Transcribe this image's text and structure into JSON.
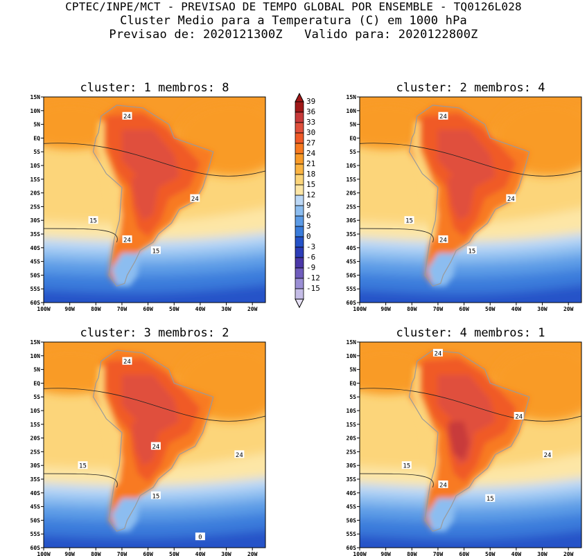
{
  "header": {
    "line1": "CPTEC/INPE/MCT - PREVISAO DE TEMPO GLOBAL POR ENSEMBLE - TQ0126L028",
    "line2": "Cluster Medio para a Temperatura (C) em 1000 hPa",
    "line3": "Previsao de: 2020121300Z   Valido para: 2020122800Z"
  },
  "colorbar": {
    "levels": [
      "39",
      "36",
      "33",
      "30",
      "27",
      "24",
      "21",
      "18",
      "15",
      "12",
      "9",
      "6",
      "3",
      "0",
      "-3",
      "-6",
      "-9",
      "-12",
      "-15"
    ],
    "colors": [
      "#a01818",
      "#c83a3a",
      "#e0503c",
      "#f05a28",
      "#f87a20",
      "#f99b28",
      "#fbb442",
      "#fcd57a",
      "#fde6a6",
      "#bcd8f6",
      "#8cbdf0",
      "#5c9be6",
      "#3a7cdb",
      "#2552c8",
      "#2d3db8",
      "#4b38a8",
      "#6f5cbc",
      "#9a8ed4",
      "#c4bce6"
    ]
  },
  "chart_data": [
    {
      "type": "heatmap",
      "title": "cluster: 1   membros: 8",
      "xlabels": [
        "100W",
        "90W",
        "80W",
        "70W",
        "60W",
        "50W",
        "40W",
        "30W",
        "20W"
      ],
      "ylabels": [
        "15N",
        "10N",
        "5N",
        "EQ",
        "5S",
        "10S",
        "15S",
        "20S",
        "25S",
        "30S",
        "35S",
        "40S",
        "45S",
        "50S",
        "55S",
        "60S"
      ],
      "contour_labels": [
        "24",
        "24",
        "15",
        "24",
        "15"
      ]
    },
    {
      "type": "heatmap",
      "title": "cluster: 2   membros: 4",
      "xlabels": [
        "100W",
        "90W",
        "80W",
        "70W",
        "60W",
        "50W",
        "40W",
        "30W",
        "20W"
      ],
      "ylabels": [
        "15N",
        "10N",
        "5N",
        "EQ",
        "5S",
        "10S",
        "15S",
        "20S",
        "25S",
        "30S",
        "35S",
        "40S",
        "45S",
        "50S",
        "55S",
        "60S"
      ],
      "contour_labels": [
        "24",
        "24",
        "15",
        "24",
        "15"
      ]
    },
    {
      "type": "heatmap",
      "title": "cluster: 3   membros: 2",
      "xlabels": [
        "100W",
        "90W",
        "80W",
        "70W",
        "60W",
        "50W",
        "40W",
        "30W",
        "20W"
      ],
      "ylabels": [
        "15N",
        "10N",
        "5N",
        "EQ",
        "5S",
        "10S",
        "15S",
        "20S",
        "25S",
        "30S",
        "35S",
        "40S",
        "45S",
        "50S",
        "55S",
        "60S"
      ],
      "contour_labels": [
        "24",
        "24",
        "24",
        "15",
        "15",
        "0"
      ]
    },
    {
      "type": "heatmap",
      "title": "cluster: 4   membros: 1",
      "xlabels": [
        "100W",
        "90W",
        "80W",
        "70W",
        "60W",
        "50W",
        "40W",
        "30W",
        "20W"
      ],
      "ylabels": [
        "15N",
        "10N",
        "5N",
        "EQ",
        "5S",
        "10S",
        "15S",
        "20S",
        "25S",
        "30S",
        "35S",
        "40S",
        "45S",
        "50S",
        "55S",
        "60S"
      ],
      "contour_labels": [
        "24",
        "24",
        "24",
        "15",
        "24",
        "15"
      ]
    }
  ]
}
